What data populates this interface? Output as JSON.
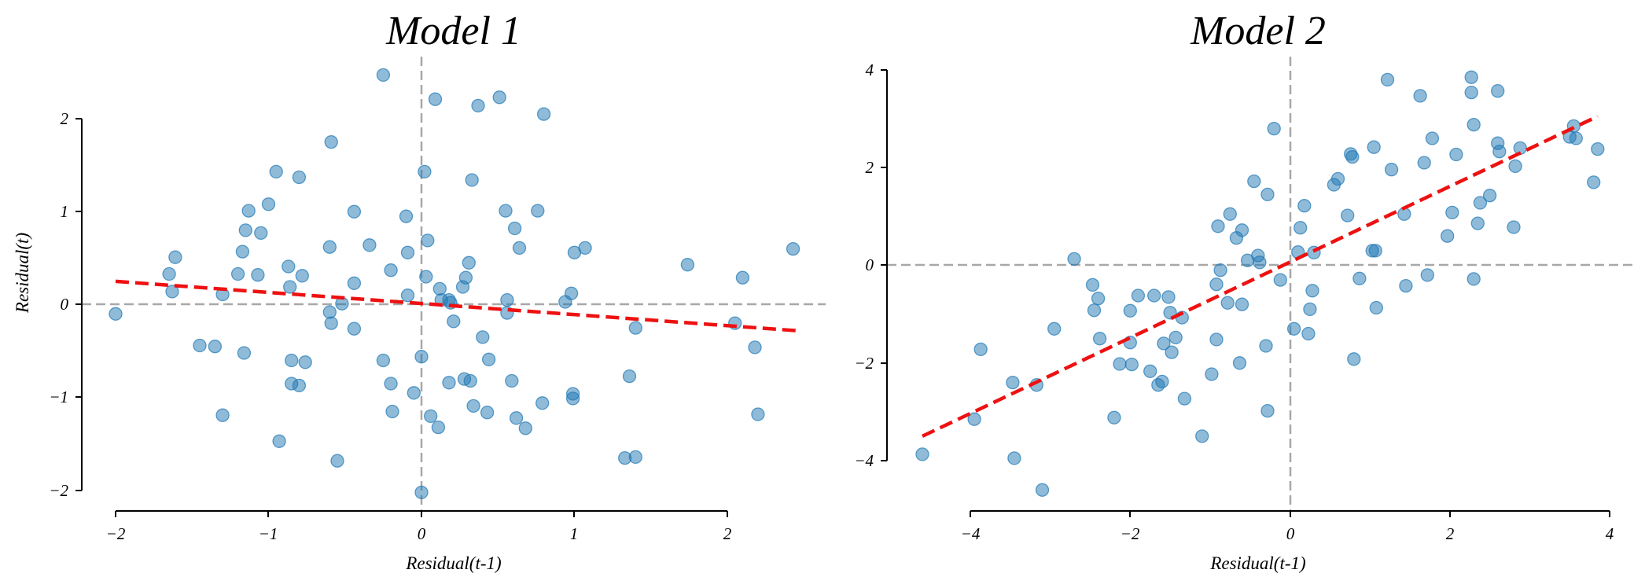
{
  "chart_data": [
    {
      "type": "scatter",
      "title": "Model 1",
      "xlabel": "Residual(t-1)",
      "ylabel": "Residual(t)",
      "xlim": [
        -2.0,
        2.65
      ],
      "ylim": [
        -2.2,
        2.6
      ],
      "xticks": [
        -2,
        -1,
        0,
        1,
        2
      ],
      "yticks": [
        -2,
        -1,
        0,
        1,
        2
      ],
      "xtick_labels": [
        "−2",
        "−1",
        "0",
        "1",
        "2"
      ],
      "ytick_labels": [
        "−2",
        "−1",
        "0",
        "1",
        "2"
      ],
      "y_axis_label_visible": true,
      "grid": false,
      "reference_lines": {
        "x": 0,
        "y": 0,
        "color": "#a8a8a8",
        "style": "dashed"
      },
      "fit_line": {
        "x": [
          -2.0,
          2.45
        ],
        "y": [
          0.25,
          -0.28
        ],
        "color": "#ee1111",
        "style": "dashed"
      },
      "point_color": "#1f77b4",
      "points": [
        [
          -2.0,
          -0.1
        ],
        [
          -1.65,
          0.33
        ],
        [
          -1.63,
          0.14
        ],
        [
          -1.61,
          0.51
        ],
        [
          -1.45,
          -0.44
        ],
        [
          -1.35,
          -0.45
        ],
        [
          -1.3,
          0.11
        ],
        [
          -1.3,
          -1.19
        ],
        [
          -1.2,
          0.33
        ],
        [
          -1.17,
          0.57
        ],
        [
          -1.16,
          -0.52
        ],
        [
          -1.15,
          0.8
        ],
        [
          -1.13,
          1.01
        ],
        [
          -1.07,
          0.32
        ],
        [
          -1.05,
          0.77
        ],
        [
          -1.0,
          1.08
        ],
        [
          -0.95,
          1.43
        ],
        [
          -0.93,
          -1.47
        ],
        [
          -0.87,
          0.41
        ],
        [
          -0.86,
          0.19
        ],
        [
          -0.85,
          -0.85
        ],
        [
          -0.85,
          -0.6
        ],
        [
          -0.8,
          -0.87
        ],
        [
          -0.8,
          1.37
        ],
        [
          -0.78,
          0.31
        ],
        [
          -0.76,
          -0.62
        ],
        [
          -0.6,
          0.62
        ],
        [
          -0.6,
          -0.08
        ],
        [
          -0.59,
          -0.2
        ],
        [
          -0.59,
          1.75
        ],
        [
          -0.55,
          -1.68
        ],
        [
          -0.52,
          0.01
        ],
        [
          -0.44,
          0.23
        ],
        [
          -0.44,
          -0.26
        ],
        [
          -0.44,
          1.0
        ],
        [
          -0.34,
          0.64
        ],
        [
          -0.25,
          2.47
        ],
        [
          -0.25,
          -0.6
        ],
        [
          -0.2,
          0.37
        ],
        [
          -0.2,
          -0.85
        ],
        [
          -0.19,
          -1.15
        ],
        [
          -0.1,
          0.95
        ],
        [
          -0.09,
          0.1
        ],
        [
          -0.09,
          0.56
        ],
        [
          -0.05,
          -0.95
        ],
        [
          0.0,
          -0.56
        ],
        [
          0.0,
          -2.02
        ],
        [
          0.02,
          1.43
        ],
        [
          0.03,
          0.3
        ],
        [
          0.04,
          0.69
        ],
        [
          0.06,
          -1.2
        ],
        [
          0.09,
          2.21
        ],
        [
          0.11,
          -1.32
        ],
        [
          0.12,
          0.17
        ],
        [
          0.13,
          0.05
        ],
        [
          0.18,
          0.05
        ],
        [
          0.18,
          -0.84
        ],
        [
          0.19,
          0.02
        ],
        [
          0.21,
          -0.18
        ],
        [
          0.27,
          0.19
        ],
        [
          0.28,
          -0.8
        ],
        [
          0.29,
          0.29
        ],
        [
          0.31,
          0.45
        ],
        [
          0.32,
          -0.82
        ],
        [
          0.33,
          1.34
        ],
        [
          0.34,
          -1.09
        ],
        [
          0.37,
          2.14
        ],
        [
          0.4,
          -0.35
        ],
        [
          0.43,
          -1.16
        ],
        [
          0.44,
          -0.59
        ],
        [
          0.51,
          2.23
        ],
        [
          0.55,
          1.01
        ],
        [
          0.56,
          0.05
        ],
        [
          0.56,
          -0.09
        ],
        [
          0.59,
          -0.82
        ],
        [
          0.61,
          0.82
        ],
        [
          0.62,
          -1.22
        ],
        [
          0.64,
          0.61
        ],
        [
          0.68,
          -1.33
        ],
        [
          0.76,
          1.01
        ],
        [
          0.79,
          -1.06
        ],
        [
          0.8,
          2.05
        ],
        [
          0.94,
          0.03
        ],
        [
          0.98,
          0.12
        ],
        [
          0.99,
          -1.01
        ],
        [
          0.99,
          -0.96
        ],
        [
          1.0,
          0.56
        ],
        [
          1.07,
          0.61
        ],
        [
          1.33,
          -1.65
        ],
        [
          1.36,
          -0.77
        ],
        [
          1.4,
          -1.64
        ],
        [
          1.4,
          -0.25
        ],
        [
          1.74,
          0.43
        ],
        [
          2.05,
          -0.2
        ],
        [
          2.1,
          0.29
        ],
        [
          2.18,
          -0.46
        ],
        [
          2.2,
          -1.18
        ],
        [
          2.43,
          0.6
        ]
      ]
    },
    {
      "type": "scatter",
      "title": "Model 2",
      "xlabel": "Residual(t-1)",
      "ylabel": "",
      "xlim": [
        -4.0,
        4.0
      ],
      "ylim": [
        -5.0,
        4.0
      ],
      "xticks": [
        -4,
        -2,
        0,
        2,
        4
      ],
      "yticks": [
        -4,
        -2,
        0,
        2,
        4
      ],
      "xtick_labels": [
        "−4",
        "−2",
        "0",
        "2",
        "4"
      ],
      "ytick_labels": [
        "−4",
        "−2",
        "0",
        "2",
        "4"
      ],
      "y_axis_label_visible": false,
      "grid": false,
      "reference_lines": {
        "x": 0,
        "y": 0,
        "color": "#a8a8a8",
        "style": "dashed"
      },
      "fit_line": {
        "x": [
          -4.6,
          3.85
        ],
        "y": [
          -3.5,
          3.05
        ],
        "color": "#ee1111",
        "style": "dashed"
      },
      "point_color": "#1f77b4",
      "points": [
        [
          -4.6,
          -3.87
        ],
        [
          -3.95,
          -3.15
        ],
        [
          -3.87,
          -1.72
        ],
        [
          -3.47,
          -2.4
        ],
        [
          -3.45,
          -3.95
        ],
        [
          -3.17,
          -2.45
        ],
        [
          -3.1,
          -4.6
        ],
        [
          -2.95,
          -1.3
        ],
        [
          -2.7,
          0.13
        ],
        [
          -2.47,
          -0.4
        ],
        [
          -2.45,
          -0.92
        ],
        [
          -2.4,
          -0.68
        ],
        [
          -2.38,
          -1.5
        ],
        [
          -2.2,
          -3.12
        ],
        [
          -2.13,
          -2.02
        ],
        [
          -2.0,
          -0.93
        ],
        [
          -2.0,
          -1.58
        ],
        [
          -1.98,
          -2.03
        ],
        [
          -1.9,
          -0.62
        ],
        [
          -1.75,
          -2.17
        ],
        [
          -1.7,
          -0.62
        ],
        [
          -1.65,
          -2.45
        ],
        [
          -1.6,
          -2.38
        ],
        [
          -1.58,
          -1.6
        ],
        [
          -1.52,
          -0.65
        ],
        [
          -1.5,
          -0.97
        ],
        [
          -1.48,
          -1.78
        ],
        [
          -1.43,
          -1.48
        ],
        [
          -1.35,
          -1.07
        ],
        [
          -1.32,
          -2.73
        ],
        [
          -1.1,
          -3.5
        ],
        [
          -0.98,
          -2.23
        ],
        [
          -0.92,
          -0.39
        ],
        [
          -0.92,
          -1.52
        ],
        [
          -0.9,
          0.8
        ],
        [
          -0.87,
          -0.1
        ],
        [
          -0.78,
          -0.77
        ],
        [
          -0.75,
          1.05
        ],
        [
          -0.67,
          0.56
        ],
        [
          -0.63,
          -2.0
        ],
        [
          -0.6,
          0.72
        ],
        [
          -0.6,
          -0.8
        ],
        [
          -0.53,
          0.1
        ],
        [
          -0.45,
          1.72
        ],
        [
          -0.4,
          0.2
        ],
        [
          -0.38,
          0.06
        ],
        [
          -0.3,
          -1.65
        ],
        [
          -0.28,
          -2.98
        ],
        [
          -0.28,
          1.45
        ],
        [
          -0.2,
          2.8
        ],
        [
          -0.12,
          -0.3
        ],
        [
          0.05,
          -1.3
        ],
        [
          0.1,
          0.27
        ],
        [
          0.13,
          0.77
        ],
        [
          0.18,
          1.22
        ],
        [
          0.23,
          -1.4
        ],
        [
          0.25,
          -0.9
        ],
        [
          0.28,
          -0.52
        ],
        [
          0.3,
          0.26
        ],
        [
          0.55,
          1.65
        ],
        [
          0.6,
          1.77
        ],
        [
          0.72,
          1.02
        ],
        [
          0.76,
          2.28
        ],
        [
          0.78,
          2.22
        ],
        [
          0.8,
          -1.92
        ],
        [
          0.87,
          -0.27
        ],
        [
          1.03,
          0.3
        ],
        [
          1.05,
          2.42
        ],
        [
          1.07,
          0.3
        ],
        [
          1.08,
          -0.87
        ],
        [
          1.22,
          3.8
        ],
        [
          1.27,
          1.96
        ],
        [
          1.43,
          1.05
        ],
        [
          1.45,
          -0.42
        ],
        [
          1.63,
          3.47
        ],
        [
          1.68,
          2.1
        ],
        [
          1.72,
          -0.2
        ],
        [
          1.78,
          2.6
        ],
        [
          1.97,
          0.6
        ],
        [
          2.03,
          1.08
        ],
        [
          2.08,
          2.27
        ],
        [
          2.27,
          3.54
        ],
        [
          2.27,
          3.85
        ],
        [
          2.3,
          2.88
        ],
        [
          2.3,
          -0.28
        ],
        [
          2.35,
          0.86
        ],
        [
          2.38,
          1.28
        ],
        [
          2.5,
          1.43
        ],
        [
          2.6,
          3.57
        ],
        [
          2.6,
          2.5
        ],
        [
          2.62,
          2.33
        ],
        [
          2.8,
          0.78
        ],
        [
          2.82,
          2.03
        ],
        [
          2.88,
          2.4
        ],
        [
          3.5,
          2.63
        ],
        [
          3.55,
          2.85
        ],
        [
          3.58,
          2.6
        ],
        [
          3.8,
          1.7
        ],
        [
          3.85,
          2.38
        ]
      ]
    }
  ]
}
